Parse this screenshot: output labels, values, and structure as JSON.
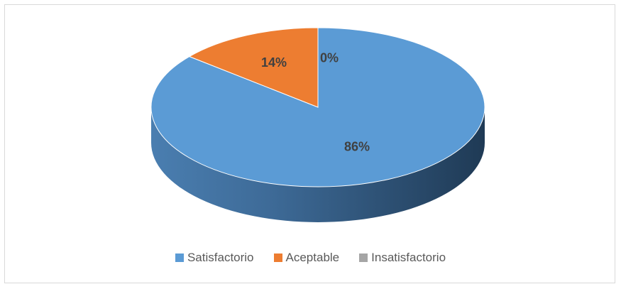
{
  "chart_data": {
    "type": "pie",
    "style": "3d",
    "categories": [
      "Satisfactorio",
      "Aceptable",
      "Insatisfactorio"
    ],
    "values": [
      86,
      14,
      0
    ],
    "data_labels": [
      "86%",
      "14%",
      "0%"
    ],
    "colors": [
      "#5b9bd5",
      "#ed7d31",
      "#a5a5a5"
    ],
    "legend_position": "bottom"
  }
}
